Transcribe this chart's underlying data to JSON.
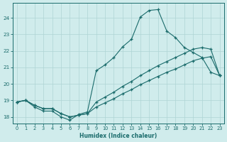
{
  "xlabel": "Humidex (Indice chaleur)",
  "bg_color": "#d0ecec",
  "grid_color": "#aed4d4",
  "line_color": "#1a6b6b",
  "xlim": [
    -0.5,
    23.5
  ],
  "ylim": [
    17.6,
    24.9
  ],
  "xticks": [
    0,
    1,
    2,
    3,
    4,
    5,
    6,
    7,
    8,
    9,
    10,
    11,
    12,
    13,
    14,
    15,
    16,
    17,
    18,
    19,
    20,
    21,
    22,
    23
  ],
  "yticks": [
    18,
    19,
    20,
    21,
    22,
    23,
    24
  ],
  "line1_x": [
    0,
    1,
    2,
    3,
    4,
    5,
    6,
    7,
    8,
    9,
    10,
    11,
    12,
    13,
    14,
    15,
    16,
    17,
    18,
    19,
    20,
    21,
    22,
    23
  ],
  "line1_y": [
    18.9,
    19.0,
    18.6,
    18.35,
    18.35,
    18.0,
    17.8,
    18.15,
    18.3,
    20.8,
    21.15,
    21.6,
    22.25,
    22.7,
    24.05,
    24.45,
    24.5,
    23.2,
    22.8,
    22.2,
    21.9,
    21.6,
    20.7,
    20.5
  ],
  "line2_x": [
    0,
    1,
    2,
    3,
    4,
    5,
    6,
    7,
    8,
    9,
    10,
    11,
    12,
    13,
    14,
    15,
    16,
    17,
    18,
    19,
    20,
    21,
    22,
    23
  ],
  "line2_y": [
    18.9,
    19.0,
    18.7,
    18.5,
    18.5,
    18.2,
    18.0,
    18.1,
    18.2,
    18.6,
    18.85,
    19.1,
    19.4,
    19.65,
    19.95,
    20.2,
    20.45,
    20.7,
    20.9,
    21.15,
    21.4,
    21.55,
    21.65,
    20.5
  ],
  "line3_x": [
    0,
    1,
    2,
    3,
    4,
    5,
    6,
    7,
    8,
    9,
    10,
    11,
    12,
    13,
    14,
    15,
    16,
    17,
    18,
    19,
    20,
    21,
    22,
    23
  ],
  "line3_y": [
    18.9,
    19.0,
    18.7,
    18.5,
    18.5,
    18.2,
    18.0,
    18.1,
    18.2,
    18.9,
    19.2,
    19.5,
    19.85,
    20.15,
    20.5,
    20.8,
    21.1,
    21.35,
    21.6,
    21.85,
    22.1,
    22.2,
    22.1,
    20.5
  ]
}
